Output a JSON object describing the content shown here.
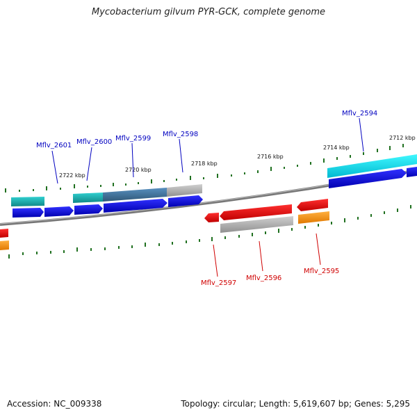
{
  "title": "Mycobacterium gilvum PYR-GCK, complete genome",
  "accession": "Accession: NC_009338",
  "summary": "Topology: circular; Length: 5,619,607 bp; Genes: 5,295",
  "ticks": [
    "2722 kbp",
    "2720 kbp",
    "2718 kbp",
    "2716 kbp",
    "2714 kbp",
    "2712 kbp"
  ],
  "genes_forward": [
    "Mflv_2601",
    "Mflv_2600",
    "Mflv_2599",
    "Mflv_2598",
    "Mflv_2594"
  ],
  "genes_reverse": [
    "Mflv_2597",
    "Mflv_2596",
    "Mflv_2595"
  ],
  "colors": {
    "forward_label": "#0000c0",
    "reverse_label": "#d00000",
    "cds_forward": "#0000e0",
    "cds_reverse": "#ff0000",
    "gene_teal": "#20b0b0",
    "gene_cyan": "#00e0f0",
    "gene_steel": "#4070a0",
    "gene_gray": "#a8a8a8",
    "gene_orange": "#ff9000",
    "tick": "#207020",
    "backbone": "#777777"
  }
}
